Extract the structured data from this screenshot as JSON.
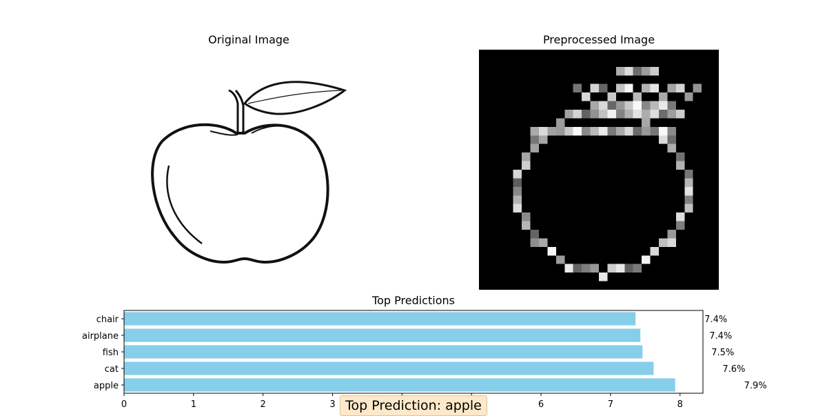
{
  "panels": {
    "original_title": "Original Image",
    "preprocessed_title": "Preprocessed Image"
  },
  "banner": {
    "text": "Top Prediction: apple",
    "color": "#fde9c9"
  },
  "chart_data": {
    "type": "bar",
    "orientation": "horizontal",
    "title": "Top Predictions",
    "xlabel": "",
    "ylabel": "",
    "categories": [
      "chair",
      "airplane",
      "fish",
      "cat",
      "apple"
    ],
    "values": [
      7.36,
      7.43,
      7.46,
      7.62,
      7.93
    ],
    "value_labels": [
      "7.4%",
      "7.4%",
      "7.5%",
      "7.6%",
      "7.9%"
    ],
    "xticks": [
      "0",
      "1",
      "2",
      "3",
      "4",
      "5",
      "6",
      "7",
      "8"
    ],
    "xlim": [
      0,
      8.33
    ],
    "bar_color": "#87ceeb",
    "grid": false
  }
}
